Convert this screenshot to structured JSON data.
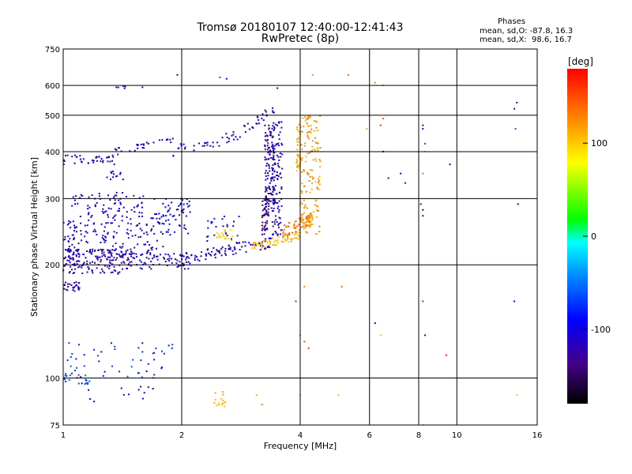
{
  "chart_data": {
    "type": "scatter",
    "title": "Tromsø 20180107 12:40:00-12:41:43",
    "subtitle": "RwPretec (8p)",
    "phases_header": "Phases",
    "phase_stats": [
      "mean, sd,O: -87.8, 16.3",
      "mean, sd,X:  98.6, 16.7"
    ],
    "xlabel": "Frequency [MHz]",
    "ylabel": "Stationary phase Virtual Height [km]",
    "x_scale": "log",
    "y_scale": "log",
    "xlim": [
      1,
      16
    ],
    "ylim": [
      75,
      750
    ],
    "xticks": [
      1,
      2,
      4,
      6,
      8,
      10,
      16
    ],
    "xtick_labels": [
      "1",
      "2",
      "4",
      "6",
      "8",
      "10",
      "16"
    ],
    "yticks": [
      75,
      100,
      200,
      300,
      400,
      500,
      600,
      750
    ],
    "ytick_labels": [
      "75",
      "100",
      "200",
      "300",
      "400",
      "500",
      "600",
      "750"
    ],
    "grid": true,
    "colorbar": {
      "label": "[deg]",
      "range": [
        -180,
        180
      ],
      "ticks": [
        100,
        0,
        -100
      ],
      "tick_labels": [
        "100",
        "0",
        "-100"
      ]
    },
    "series": [
      {
        "traces": [
          {
            "kind": "band",
            "f0": 1.0,
            "f1": 1.35,
            "h0": 380,
            "h1": 380,
            "spread": 12,
            "n": 40,
            "phase": -115
          },
          {
            "kind": "band",
            "f0": 1.35,
            "f1": 1.9,
            "h0": 400,
            "h1": 430,
            "spread": 10,
            "n": 30,
            "phase": -105
          },
          {
            "kind": "band",
            "f0": 1.9,
            "f1": 2.8,
            "h0": 400,
            "h1": 440,
            "spread": 15,
            "n": 35,
            "phase": -115
          },
          {
            "kind": "band",
            "f0": 2.8,
            "f1": 3.45,
            "h0": 450,
            "h1": 520,
            "spread": 15,
            "n": 25,
            "phase": -120
          },
          {
            "kind": "band",
            "f0": 1.0,
            "f1": 1.5,
            "h0": 205,
            "h1": 205,
            "spread": 16,
            "n": 180,
            "phase": -118
          },
          {
            "kind": "band",
            "f0": 1.0,
            "f1": 1.8,
            "h0": 240,
            "h1": 240,
            "spread": 30,
            "n": 160,
            "phase": -112
          },
          {
            "kind": "band",
            "f0": 1.05,
            "f1": 1.6,
            "h0": 290,
            "h1": 290,
            "spread": 22,
            "n": 70,
            "phase": -105
          },
          {
            "kind": "band",
            "f0": 1.5,
            "f1": 2.1,
            "h0": 205,
            "h1": 205,
            "spread": 10,
            "n": 60,
            "phase": -112
          },
          {
            "kind": "band",
            "f0": 1.7,
            "f1": 2.1,
            "h0": 270,
            "h1": 270,
            "spread": 30,
            "n": 60,
            "phase": -100
          },
          {
            "kind": "band",
            "f0": 1.0,
            "f1": 1.1,
            "h0": 175,
            "h1": 175,
            "spread": 5,
            "n": 25,
            "phase": -125
          },
          {
            "kind": "band",
            "f0": 2.0,
            "f1": 3.4,
            "h0": 208,
            "h1": 230,
            "spread": 8,
            "n": 90,
            "phase": -108
          },
          {
            "kind": "band",
            "f0": 2.3,
            "f1": 2.8,
            "h0": 250,
            "h1": 250,
            "spread": 20,
            "n": 25,
            "phase": -90
          },
          {
            "kind": "band",
            "f0": 2.4,
            "f1": 2.7,
            "h0": 240,
            "h1": 240,
            "spread": 8,
            "n": 20,
            "phase": 95
          },
          {
            "kind": "band",
            "f0": 3.0,
            "f1": 4.0,
            "h0": 222,
            "h1": 240,
            "spread": 6,
            "n": 60,
            "phase": 110
          },
          {
            "kind": "band",
            "f0": 3.6,
            "f1": 4.3,
            "h0": 245,
            "h1": 265,
            "spread": 10,
            "n": 70,
            "phase": 130
          },
          {
            "kind": "vert",
            "f0": 3.2,
            "f1": 3.3,
            "h0": 240,
            "h1": 310,
            "n": 40,
            "phase": -140
          },
          {
            "kind": "vert",
            "f0": 3.25,
            "f1": 3.45,
            "h0": 270,
            "h1": 470,
            "n": 140,
            "phase": -120
          },
          {
            "kind": "vert",
            "f0": 3.4,
            "f1": 3.6,
            "h0": 240,
            "h1": 480,
            "n": 100,
            "phase": -112
          },
          {
            "kind": "vert",
            "f0": 3.9,
            "f1": 4.0,
            "h0": 350,
            "h1": 480,
            "n": 30,
            "phase": 110
          },
          {
            "kind": "vert",
            "f0": 4.0,
            "f1": 4.5,
            "h0": 240,
            "h1": 500,
            "n": 140,
            "phase": 120
          },
          {
            "kind": "band",
            "f0": 1.0,
            "f1": 1.9,
            "h0": 112,
            "h1": 112,
            "spread": 12,
            "n": 45,
            "phase": -75
          },
          {
            "kind": "band",
            "f0": 1.0,
            "f1": 1.2,
            "h0": 102,
            "h1": 102,
            "spread": 6,
            "n": 25,
            "phase": -70
          },
          {
            "kind": "band",
            "f0": 1.05,
            "f1": 1.8,
            "h0": 90,
            "h1": 90,
            "spread": 5,
            "n": 12,
            "phase": -100
          },
          {
            "kind": "band",
            "f0": 2.4,
            "f1": 2.6,
            "h0": 88,
            "h1": 88,
            "spread": 4,
            "n": 14,
            "phase": 105
          },
          {
            "kind": "band",
            "f0": 1.25,
            "f1": 1.45,
            "h0": 345,
            "h1": 345,
            "spread": 10,
            "n": 12,
            "phase": -100
          },
          {
            "kind": "band",
            "f0": 1.35,
            "f1": 1.7,
            "h0": 595,
            "h1": 595,
            "spread": 8,
            "n": 6,
            "phase": -110
          }
        ]
      },
      {
        "points": [
          [
            2.5,
            630,
            -60
          ],
          [
            2.6,
            625,
            -90
          ],
          [
            1.95,
            640,
            -120
          ],
          [
            3.5,
            590,
            -100
          ],
          [
            4.3,
            640,
            120
          ],
          [
            5.3,
            640,
            140
          ],
          [
            6.2,
            610,
            130
          ],
          [
            6.5,
            600,
            110
          ],
          [
            6.5,
            490,
            145
          ],
          [
            6.4,
            470,
            160
          ],
          [
            5.9,
            460,
            110
          ],
          [
            6.5,
            400,
            -120
          ],
          [
            6.7,
            340,
            -120
          ],
          [
            7.2,
            350,
            -100
          ],
          [
            7.4,
            330,
            -80
          ],
          [
            8.2,
            470,
            -120
          ],
          [
            8.2,
            460,
            -90
          ],
          [
            8.3,
            420,
            -60
          ],
          [
            8.3,
            400,
            90
          ],
          [
            8.2,
            350,
            140
          ],
          [
            8.1,
            290,
            -130
          ],
          [
            8.2,
            280,
            -150
          ],
          [
            8.2,
            270,
            -120
          ],
          [
            9.6,
            370,
            -120
          ],
          [
            14.2,
            540,
            -120
          ],
          [
            14.0,
            520,
            -120
          ],
          [
            14.1,
            460,
            -60
          ],
          [
            14.3,
            290,
            -110
          ],
          [
            14.0,
            160,
            -90
          ],
          [
            14.2,
            90,
            100
          ],
          [
            8.2,
            160,
            -60
          ],
          [
            8.3,
            130,
            -80
          ],
          [
            9.4,
            115,
            170
          ],
          [
            6.2,
            140,
            -130
          ],
          [
            6.4,
            130,
            100
          ],
          [
            5.1,
            175,
            140
          ],
          [
            4.1,
            175,
            130
          ],
          [
            3.9,
            160,
            -60
          ],
          [
            4.0,
            130,
            120
          ],
          [
            4.1,
            125,
            150
          ],
          [
            4.2,
            120,
            160
          ],
          [
            3.2,
            85,
            130
          ],
          [
            3.1,
            90,
            110
          ],
          [
            5.0,
            90,
            100
          ],
          [
            8.2,
            75,
            100
          ],
          [
            4.0,
            90,
            100
          ]
        ]
      }
    ]
  }
}
